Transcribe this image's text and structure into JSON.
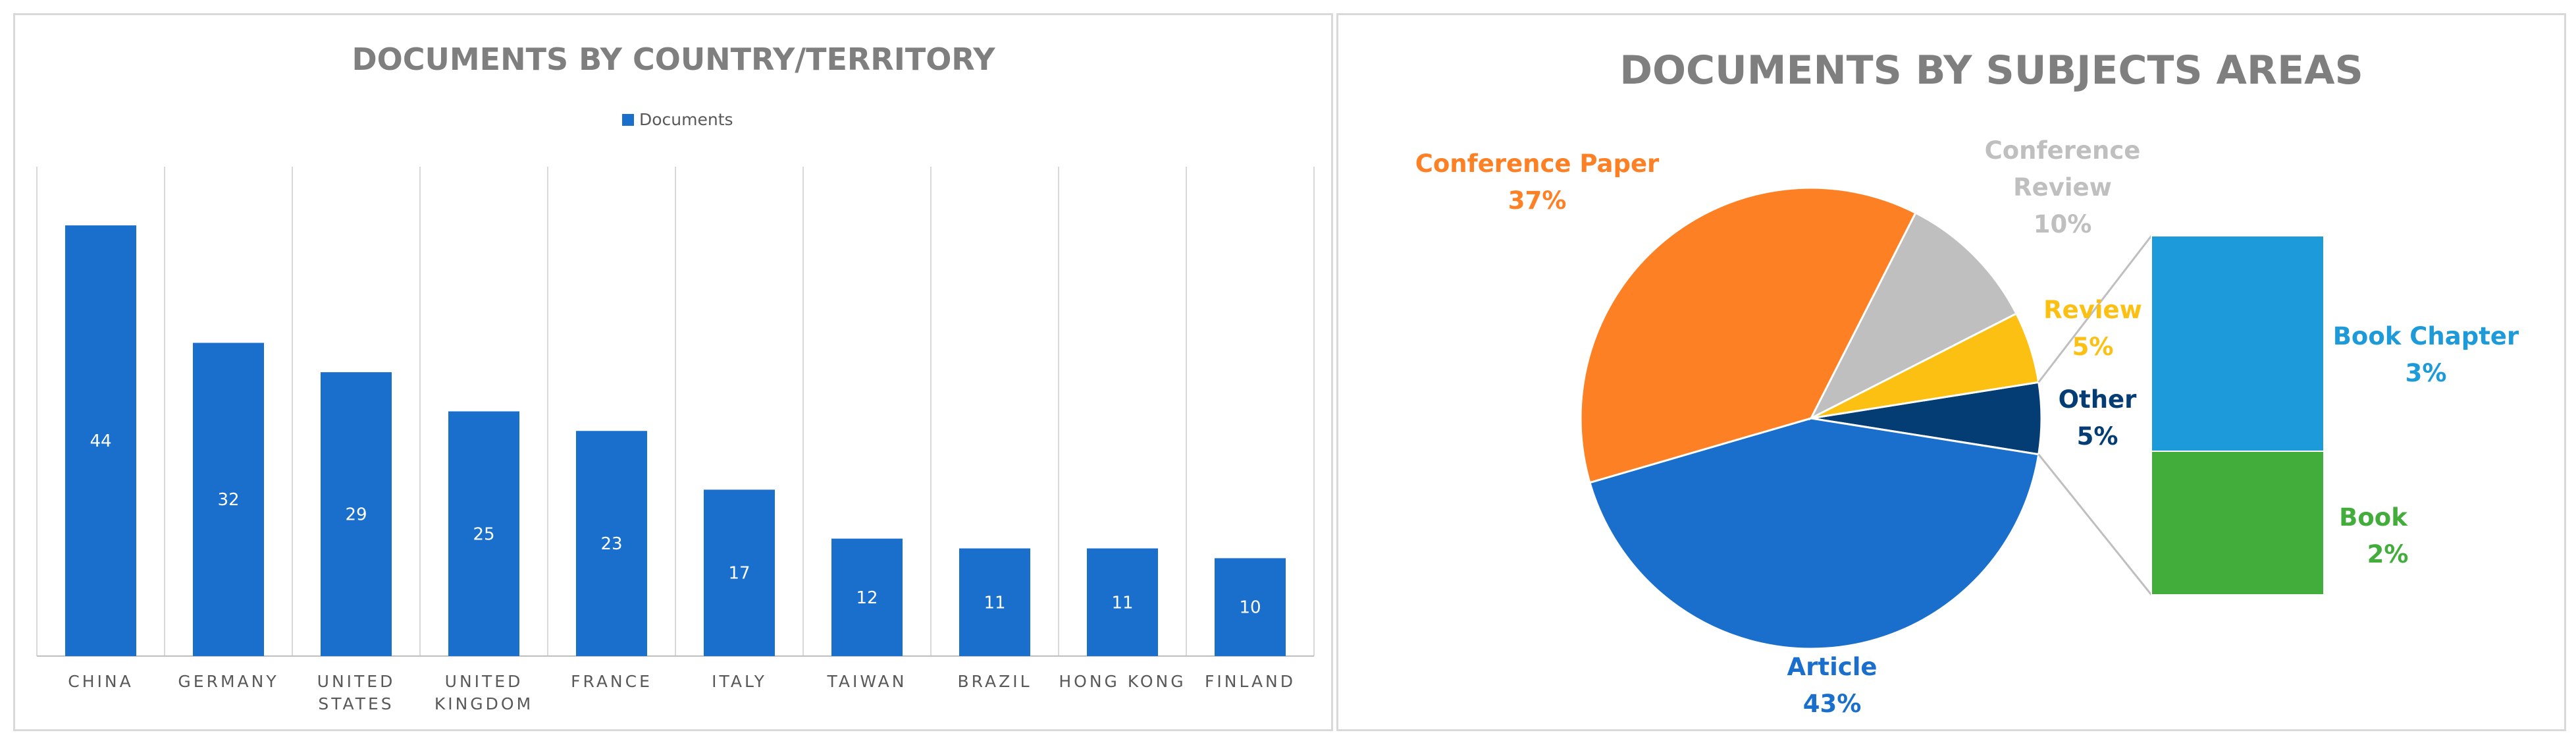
{
  "chart_data": [
    {
      "type": "bar",
      "title": "DOCUMENTS BY COUNTRY/TERRITORY",
      "legend": "top",
      "grid": true,
      "categories": [
        "CHINA",
        "GERMANY",
        "UNITED STATES",
        "UNITED KINGDOM",
        "FRANCE",
        "ITALY",
        "TAIWAN",
        "BRAZIL",
        "HONG KONG",
        "FINLAND"
      ],
      "series": [
        {
          "name": "Documents",
          "values": [
            44,
            32,
            29,
            25,
            23,
            17,
            12,
            11,
            11,
            10
          ],
          "color": "#1a6fcd"
        }
      ],
      "ylim": [
        0,
        50
      ]
    },
    {
      "type": "pie",
      "subtype": "bar-of-pie",
      "title": "DOCUMENTS BY SUBJECTS AREAS",
      "slices": [
        {
          "label": "Article",
          "value": 43,
          "display": "43%",
          "color": "#1a6fcd"
        },
        {
          "label": "Conference Paper",
          "value": 37,
          "display": "37%",
          "color": "#fd8025"
        },
        {
          "label": "Conference Review",
          "value": 10,
          "display": "10%",
          "color": "#bfbfbf"
        },
        {
          "label": "Review",
          "value": 5,
          "display": "5%",
          "color": "#fbc012"
        },
        {
          "label": "Other",
          "value": 5,
          "display": "5%",
          "color": "#043c74"
        }
      ],
      "other_breakdown": [
        {
          "label": "Book Chapter",
          "value": 3,
          "display": "3%",
          "color": "#1d9ad9"
        },
        {
          "label": "Book",
          "value": 2,
          "display": "2%",
          "color": "#43ad3c"
        }
      ]
    }
  ]
}
